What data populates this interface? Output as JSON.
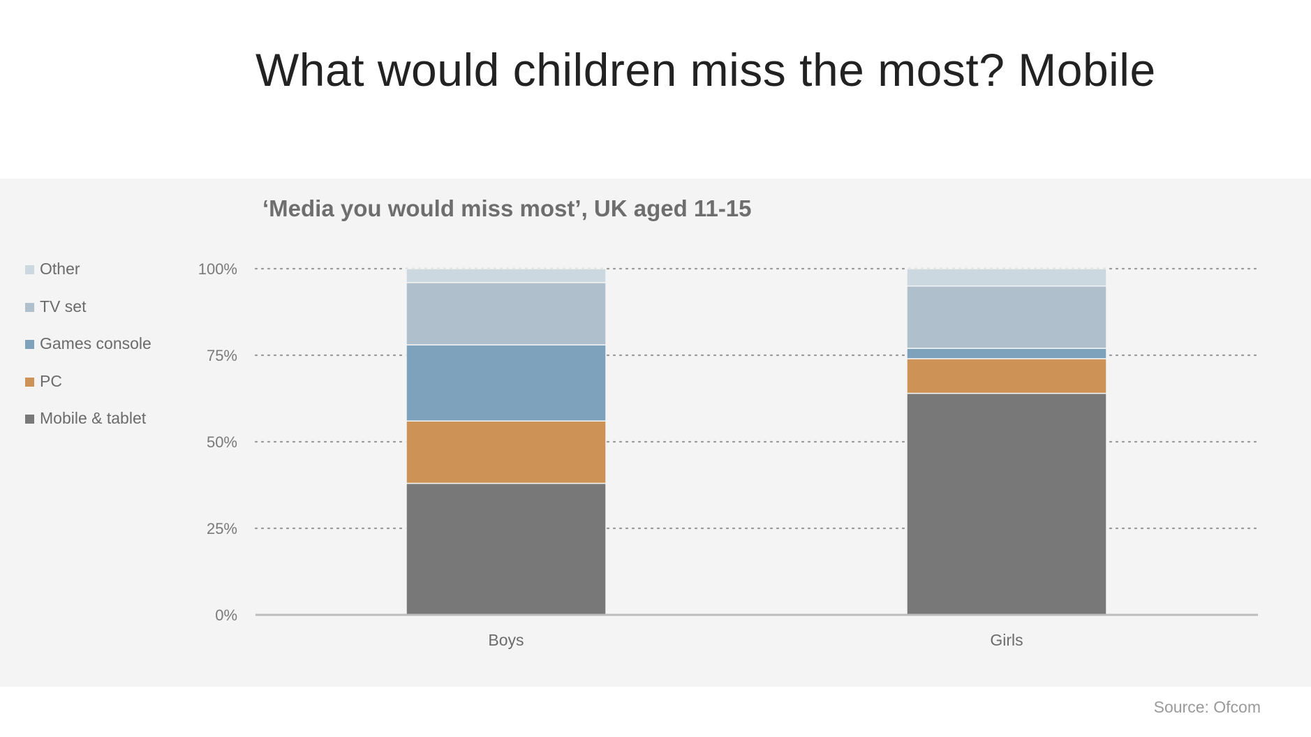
{
  "headline": "What would children miss the most? Mobile",
  "source": "Source: Ofcom",
  "chart_data": {
    "type": "bar",
    "stacked": true,
    "title": "‘Media you would miss most’, UK aged 11-15",
    "xlabel": "",
    "ylabel": "",
    "categories": [
      "Boys",
      "Girls"
    ],
    "ylim": [
      0,
      100
    ],
    "yticks": [
      0,
      25,
      50,
      75,
      100
    ],
    "ytick_labels": [
      "0%",
      "25%",
      "50%",
      "75%",
      "100%"
    ],
    "grid": true,
    "legend_position": "left",
    "series": [
      {
        "name": "Mobile & tablet",
        "color": "#787878",
        "values": [
          38,
          64
        ]
      },
      {
        "name": "PC",
        "color": "#cd9255",
        "values": [
          18,
          10
        ]
      },
      {
        "name": "Games console",
        "color": "#7ea2bb",
        "values": [
          22,
          3
        ]
      },
      {
        "name": "TV set",
        "color": "#afc0cc",
        "values": [
          18,
          18
        ]
      },
      {
        "name": "Other",
        "color": "#ccd8e0",
        "values": [
          4,
          5
        ]
      }
    ]
  }
}
